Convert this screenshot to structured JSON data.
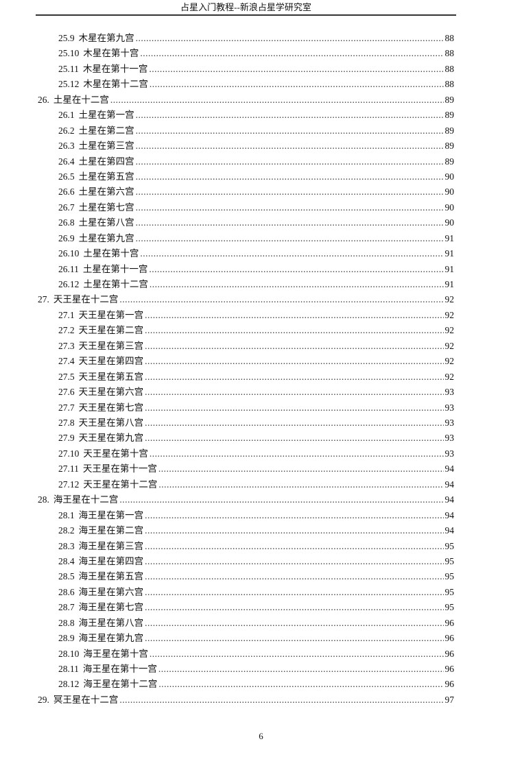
{
  "header": {
    "title": "占星入门教程--新浪占星学研究室"
  },
  "toc": [
    {
      "level": 2,
      "num": "25.9",
      "title": "木星在第九宫",
      "page": "88"
    },
    {
      "level": 2,
      "num": "25.10",
      "title": "木星在第十宫",
      "page": "88"
    },
    {
      "level": 2,
      "num": "25.11",
      "title": "木星在第十一宫",
      "page": "88"
    },
    {
      "level": 2,
      "num": "25.12",
      "title": "木星在第十二宫",
      "page": "88"
    },
    {
      "level": 1,
      "num": "26.",
      "title": "土星在十二宫",
      "page": "89"
    },
    {
      "level": 2,
      "num": "26.1",
      "title": "土星在第一宫",
      "page": "89"
    },
    {
      "level": 2,
      "num": "26.2",
      "title": "土星在第二宫",
      "page": "89"
    },
    {
      "level": 2,
      "num": "26.3",
      "title": "土星在第三宫",
      "page": "89"
    },
    {
      "level": 2,
      "num": "26.4",
      "title": "土星在第四宫",
      "page": "89"
    },
    {
      "level": 2,
      "num": "26.5",
      "title": "土星在第五宫",
      "page": "90"
    },
    {
      "level": 2,
      "num": "26.6",
      "title": "土星在第六宫",
      "page": "90"
    },
    {
      "level": 2,
      "num": "26.7",
      "title": "土星在第七宫",
      "page": "90"
    },
    {
      "level": 2,
      "num": "26.8",
      "title": "土星在第八宫",
      "page": "90"
    },
    {
      "level": 2,
      "num": "26.9",
      "title": "土星在第九宫",
      "page": "91"
    },
    {
      "level": 2,
      "num": "26.10",
      "title": "土星在第十宫",
      "page": "91"
    },
    {
      "level": 2,
      "num": "26.11",
      "title": "土星在第十一宫",
      "page": "91"
    },
    {
      "level": 2,
      "num": "26.12",
      "title": "土星在第十二宫",
      "page": "91"
    },
    {
      "level": 1,
      "num": "27.",
      "title": "天王星在十二宫",
      "page": "92"
    },
    {
      "level": 2,
      "num": "27.1",
      "title": "天王星在第一宫",
      "page": "92"
    },
    {
      "level": 2,
      "num": "27.2",
      "title": "天王星在第二宫",
      "page": "92"
    },
    {
      "level": 2,
      "num": "27.3",
      "title": "天王星在第三宫",
      "page": "92"
    },
    {
      "level": 2,
      "num": "27.4",
      "title": "天王星在第四宫",
      "page": "92"
    },
    {
      "level": 2,
      "num": "27.5",
      "title": "天王星在第五宫",
      "page": "92"
    },
    {
      "level": 2,
      "num": "27.6",
      "title": "天王星在第六宫",
      "page": "93"
    },
    {
      "level": 2,
      "num": "27.7",
      "title": "天王星在第七宫",
      "page": "93"
    },
    {
      "level": 2,
      "num": "27.8",
      "title": "天王星在第八宫",
      "page": "93"
    },
    {
      "level": 2,
      "num": "27.9",
      "title": "天王星在第九宫",
      "page": "93"
    },
    {
      "level": 2,
      "num": "27.10",
      "title": "天王星在第十宫",
      "page": "93"
    },
    {
      "level": 2,
      "num": "27.11",
      "title": "天王星在第十一宫",
      "page": "94"
    },
    {
      "level": 2,
      "num": "27.12",
      "title": "天王星在第十二宫",
      "page": "94"
    },
    {
      "level": 1,
      "num": "28.",
      "title": "海王星在十二宫",
      "page": "94"
    },
    {
      "level": 2,
      "num": "28.1",
      "title": "海王星在第一宫",
      "page": "94"
    },
    {
      "level": 2,
      "num": "28.2",
      "title": "海王星在第二宫",
      "page": "94"
    },
    {
      "level": 2,
      "num": "28.3",
      "title": "海王星在第三宫",
      "page": "95"
    },
    {
      "level": 2,
      "num": "28.4",
      "title": "海王星在第四宫",
      "page": "95"
    },
    {
      "level": 2,
      "num": "28.5",
      "title": "海王星在第五宫",
      "page": "95"
    },
    {
      "level": 2,
      "num": "28.6",
      "title": "海王星在第六宫",
      "page": "95"
    },
    {
      "level": 2,
      "num": "28.7",
      "title": "海王星在第七宫",
      "page": "95"
    },
    {
      "level": 2,
      "num": "28.8",
      "title": "海王星在第八宫",
      "page": "96"
    },
    {
      "level": 2,
      "num": "28.9",
      "title": "海王星在第九宫",
      "page": "96"
    },
    {
      "level": 2,
      "num": "28.10",
      "title": "海王星在第十宫",
      "page": "96"
    },
    {
      "level": 2,
      "num": "28.11",
      "title": "海王星在第十一宫",
      "page": "96"
    },
    {
      "level": 2,
      "num": "28.12",
      "title": "海王星在第十二宫",
      "page": "96"
    },
    {
      "level": 1,
      "num": "29.",
      "title": "冥王星在十二宫",
      "page": "97"
    }
  ],
  "footer": {
    "page_number": "6"
  }
}
